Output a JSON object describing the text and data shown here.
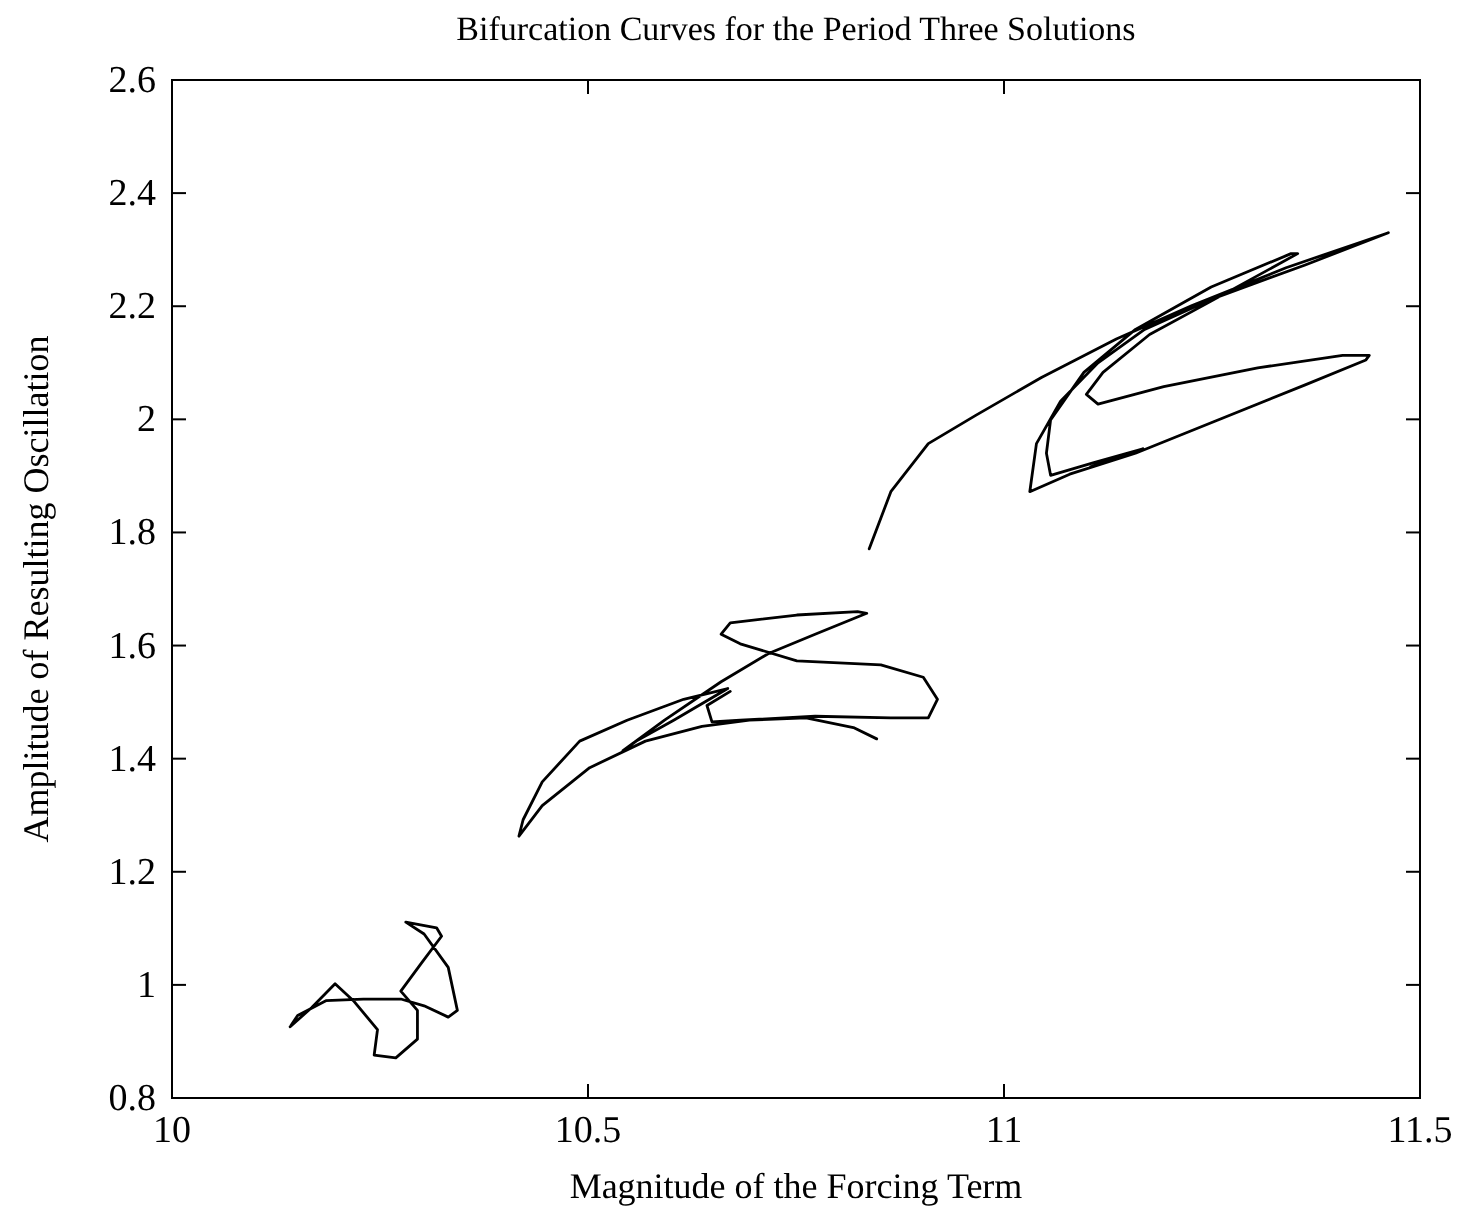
{
  "chart_data": {
    "type": "line",
    "title": "Bifurcation Curves for the Period Three Solutions",
    "xlabel": "Magnitude of the Forcing Term",
    "ylabel": "Amplitude of Resulting Oscillation",
    "xlim": [
      10,
      11.5
    ],
    "ylim": [
      0.8,
      2.6
    ],
    "xticks": [
      10,
      10.5,
      11,
      11.5
    ],
    "yticks": [
      0.8,
      1,
      1.2,
      1.4,
      1.6,
      1.8,
      2,
      2.2,
      2.4,
      2.6
    ],
    "series": [
      {
        "color": "#000000",
        "x": [
          10.142,
          10.168,
          10.196,
          10.218,
          10.247,
          10.243,
          10.269,
          10.295,
          10.295,
          10.275,
          10.3,
          10.324,
          10.318,
          10.281,
          10.303,
          10.332,
          10.343,
          10.332,
          10.303,
          10.275,
          10.23,
          10.185,
          10.151,
          10.143,
          null,
          10.847,
          10.819,
          10.762,
          10.694,
          10.637,
          10.569,
          10.502,
          10.445,
          10.417,
          10.422,
          10.445,
          10.49,
          10.547,
          10.615,
          10.668,
          10.603,
          10.558,
          10.542,
          10.592,
          10.66,
          10.717,
          10.773,
          10.835,
          10.824,
          10.751,
          10.671,
          10.66,
          10.683,
          10.751,
          10.852,
          10.903,
          10.92,
          10.909,
          10.864,
          10.773,
          10.683,
          10.649,
          10.643,
          10.671,
          null,
          10.838,
          10.864,
          10.909,
          10.966,
          11.045,
          11.135,
          11.226,
          11.339,
          11.462,
          11.362,
          11.249,
          11.169,
          11.113,
          11.068,
          11.039,
          11.031,
          11.079,
          11.158,
          11.249,
          11.362,
          11.435,
          11.439,
          11.407,
          11.305,
          11.192,
          11.113,
          11.099,
          11.119,
          11.175,
          11.249,
          11.353,
          11.345,
          11.249,
          11.158,
          11.096,
          11.056,
          11.051,
          11.056,
          11.107,
          11.167,
          11.104
        ],
        "values": [
          0.926,
          0.96,
          1.002,
          0.972,
          0.921,
          0.876,
          0.871,
          0.904,
          0.955,
          0.989,
          1.039,
          1.086,
          1.101,
          1.111,
          1.09,
          1.031,
          0.955,
          0.943,
          0.963,
          0.975,
          0.975,
          0.972,
          0.946,
          0.928,
          null,
          1.435,
          1.455,
          1.472,
          1.468,
          1.457,
          1.431,
          1.384,
          1.317,
          1.263,
          1.292,
          1.359,
          1.431,
          1.468,
          1.505,
          1.524,
          1.468,
          1.431,
          1.414,
          1.468,
          1.536,
          1.586,
          1.62,
          1.657,
          1.66,
          1.654,
          1.64,
          1.62,
          1.603,
          1.573,
          1.566,
          1.544,
          1.505,
          1.472,
          1.472,
          1.475,
          1.468,
          1.465,
          1.494,
          1.519,
          null,
          1.771,
          1.872,
          1.957,
          2.007,
          2.074,
          2.142,
          2.201,
          2.268,
          2.33,
          2.273,
          2.212,
          2.159,
          2.1,
          2.032,
          1.957,
          1.872,
          1.903,
          1.94,
          1.994,
          2.061,
          2.105,
          2.113,
          2.113,
          2.091,
          2.058,
          2.027,
          2.044,
          2.083,
          2.15,
          2.209,
          2.293,
          2.293,
          2.234,
          2.159,
          2.083,
          1.999,
          1.94,
          1.901,
          1.923,
          1.948,
          1.916
        ]
      }
    ]
  }
}
